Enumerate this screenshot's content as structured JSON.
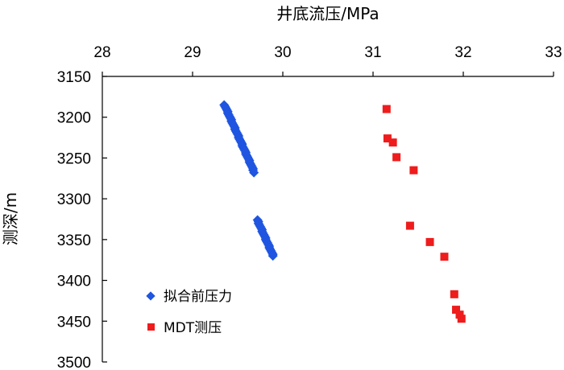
{
  "chart_data": {
    "type": "scatter",
    "title": "",
    "xlabel": "井底流压/MPa",
    "ylabel": "测深/m",
    "x_axis_position": "top",
    "y_axis_inverted": true,
    "xlim": [
      28,
      33
    ],
    "ylim": [
      3150,
      3500
    ],
    "x_ticks": [
      "28",
      "29",
      "30",
      "31",
      "32",
      "33"
    ],
    "y_ticks": [
      "3150",
      "3200",
      "3250",
      "3300",
      "3350",
      "3400",
      "3450",
      "3500"
    ],
    "grid": false,
    "legend_position": "bottom-left",
    "series": [
      {
        "name": "拟合前压力",
        "marker": "diamond",
        "color": "#1f55e0",
        "points": [
          [
            29.35,
            3185
          ],
          [
            29.36,
            3187
          ],
          [
            29.37,
            3189
          ],
          [
            29.38,
            3191
          ],
          [
            29.39,
            3193
          ],
          [
            29.39,
            3195
          ],
          [
            29.4,
            3197
          ],
          [
            29.41,
            3199
          ],
          [
            29.42,
            3201
          ],
          [
            29.43,
            3203
          ],
          [
            29.43,
            3205
          ],
          [
            29.44,
            3207
          ],
          [
            29.45,
            3209
          ],
          [
            29.46,
            3211
          ],
          [
            29.47,
            3213
          ],
          [
            29.47,
            3215
          ],
          [
            29.48,
            3217
          ],
          [
            29.49,
            3219
          ],
          [
            29.5,
            3221
          ],
          [
            29.51,
            3223
          ],
          [
            29.51,
            3225
          ],
          [
            29.52,
            3227
          ],
          [
            29.53,
            3229
          ],
          [
            29.54,
            3231
          ],
          [
            29.55,
            3233
          ],
          [
            29.55,
            3235
          ],
          [
            29.56,
            3237
          ],
          [
            29.57,
            3239
          ],
          [
            29.58,
            3241
          ],
          [
            29.59,
            3243
          ],
          [
            29.59,
            3245
          ],
          [
            29.6,
            3247
          ],
          [
            29.61,
            3249
          ],
          [
            29.62,
            3251
          ],
          [
            29.63,
            3253
          ],
          [
            29.63,
            3255
          ],
          [
            29.64,
            3257
          ],
          [
            29.65,
            3259
          ],
          [
            29.66,
            3261
          ],
          [
            29.67,
            3263
          ],
          [
            29.67,
            3265
          ],
          [
            29.68,
            3268
          ],
          [
            29.72,
            3326
          ],
          [
            29.73,
            3328
          ],
          [
            29.73,
            3330
          ],
          [
            29.74,
            3332
          ],
          [
            29.75,
            3334
          ],
          [
            29.76,
            3336
          ],
          [
            29.77,
            3338
          ],
          [
            29.77,
            3340
          ],
          [
            29.78,
            3342
          ],
          [
            29.79,
            3344
          ],
          [
            29.8,
            3346
          ],
          [
            29.81,
            3348
          ],
          [
            29.81,
            3350
          ],
          [
            29.82,
            3352
          ],
          [
            29.83,
            3354
          ],
          [
            29.84,
            3356
          ],
          [
            29.85,
            3358
          ],
          [
            29.85,
            3360
          ],
          [
            29.86,
            3362
          ],
          [
            29.87,
            3364
          ],
          [
            29.88,
            3366
          ],
          [
            29.89,
            3368
          ],
          [
            29.89,
            3370
          ]
        ]
      },
      {
        "name": "MDT测压",
        "marker": "square",
        "color": "#ee1c1c",
        "points": [
          [
            31.15,
            3190
          ],
          [
            31.16,
            3226
          ],
          [
            31.22,
            3231
          ],
          [
            31.26,
            3249
          ],
          [
            31.45,
            3265
          ],
          [
            31.41,
            3333
          ],
          [
            31.63,
            3353
          ],
          [
            31.79,
            3371
          ],
          [
            31.9,
            3417
          ],
          [
            31.92,
            3436
          ],
          [
            31.96,
            3442
          ],
          [
            31.98,
            3447
          ]
        ]
      }
    ]
  }
}
